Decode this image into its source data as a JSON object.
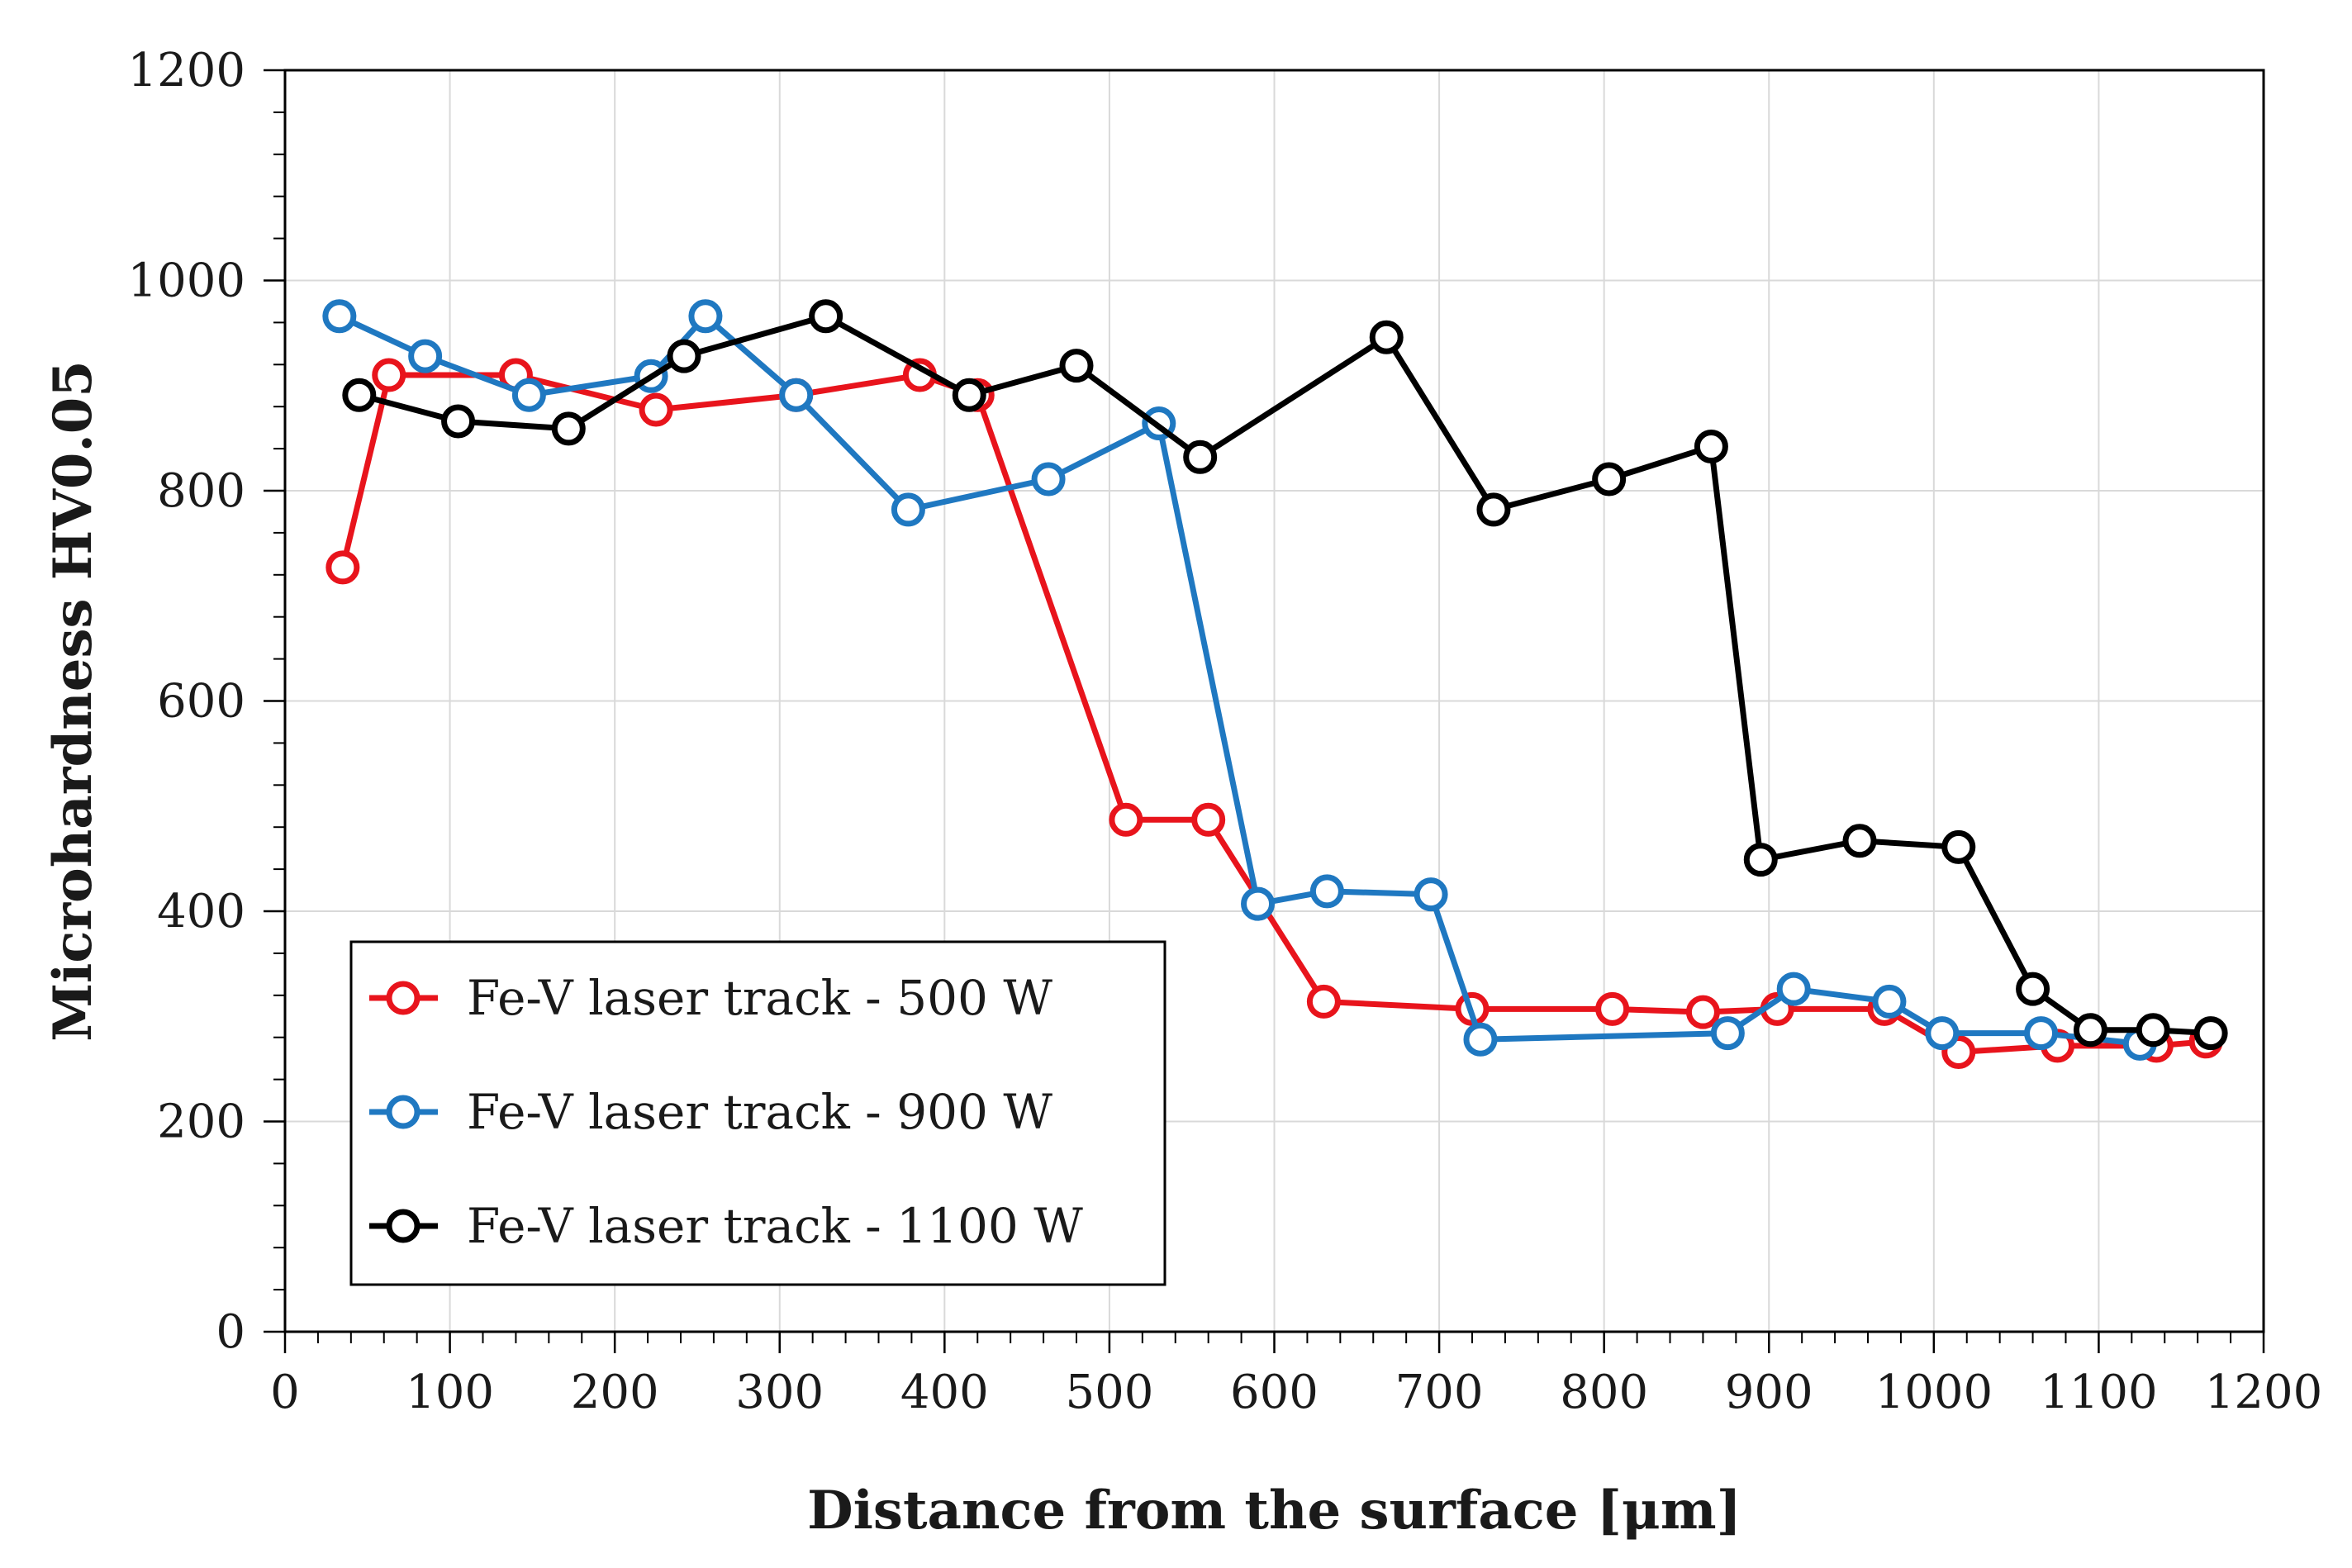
{
  "chart_data": {
    "type": "line",
    "title": "",
    "xlabel": "Distance from the surface [μm]",
    "ylabel": "Microhardness HV0.05",
    "xlim": [
      0,
      1200
    ],
    "ylim": [
      0,
      1200
    ],
    "xticks": [
      0,
      100,
      200,
      300,
      400,
      500,
      600,
      700,
      800,
      900,
      1000,
      1100,
      1200
    ],
    "yticks": [
      0,
      200,
      400,
      600,
      800,
      1000,
      1200
    ],
    "grid": true,
    "legend_position": "bottom-left",
    "series": [
      {
        "name": "Fe-V laser track - 500 W",
        "color": "#e8141c",
        "points": [
          [
            35,
            727
          ],
          [
            63,
            910
          ],
          [
            140,
            910
          ],
          [
            225,
            877
          ],
          [
            310,
            891
          ],
          [
            385,
            910
          ],
          [
            420,
            891
          ],
          [
            510,
            487
          ],
          [
            560,
            487
          ],
          [
            630,
            314
          ],
          [
            720,
            307
          ],
          [
            805,
            307
          ],
          [
            860,
            304
          ],
          [
            905,
            307
          ],
          [
            970,
            307
          ],
          [
            1015,
            266
          ],
          [
            1075,
            272
          ],
          [
            1135,
            272
          ],
          [
            1165,
            276
          ]
        ]
      },
      {
        "name": "Fe-V laser track - 900 W",
        "color": "#1f78c1",
        "points": [
          [
            33,
            966
          ],
          [
            85,
            928
          ],
          [
            148,
            891
          ],
          [
            222,
            909
          ],
          [
            255,
            966
          ],
          [
            310,
            891
          ],
          [
            378,
            782
          ],
          [
            463,
            811
          ],
          [
            530,
            864
          ],
          [
            590,
            407
          ],
          [
            632,
            419
          ],
          [
            695,
            416
          ],
          [
            725,
            278
          ],
          [
            875,
            284
          ],
          [
            915,
            326
          ],
          [
            973,
            314
          ],
          [
            1005,
            284
          ],
          [
            1065,
            284
          ],
          [
            1125,
            274
          ]
        ]
      },
      {
        "name": "Fe-V laser track - 1100 W",
        "color": "#000000",
        "points": [
          [
            45,
            891
          ],
          [
            105,
            866
          ],
          [
            172,
            859
          ],
          [
            242,
            928
          ],
          [
            328,
            966
          ],
          [
            415,
            891
          ],
          [
            480,
            919
          ],
          [
            555,
            832
          ],
          [
            668,
            946
          ],
          [
            733,
            782
          ],
          [
            803,
            811
          ],
          [
            865,
            842
          ],
          [
            895,
            449
          ],
          [
            955,
            467
          ],
          [
            1015,
            461
          ],
          [
            1060,
            326
          ],
          [
            1095,
            287
          ],
          [
            1133,
            287
          ],
          [
            1168,
            284
          ]
        ]
      }
    ]
  }
}
